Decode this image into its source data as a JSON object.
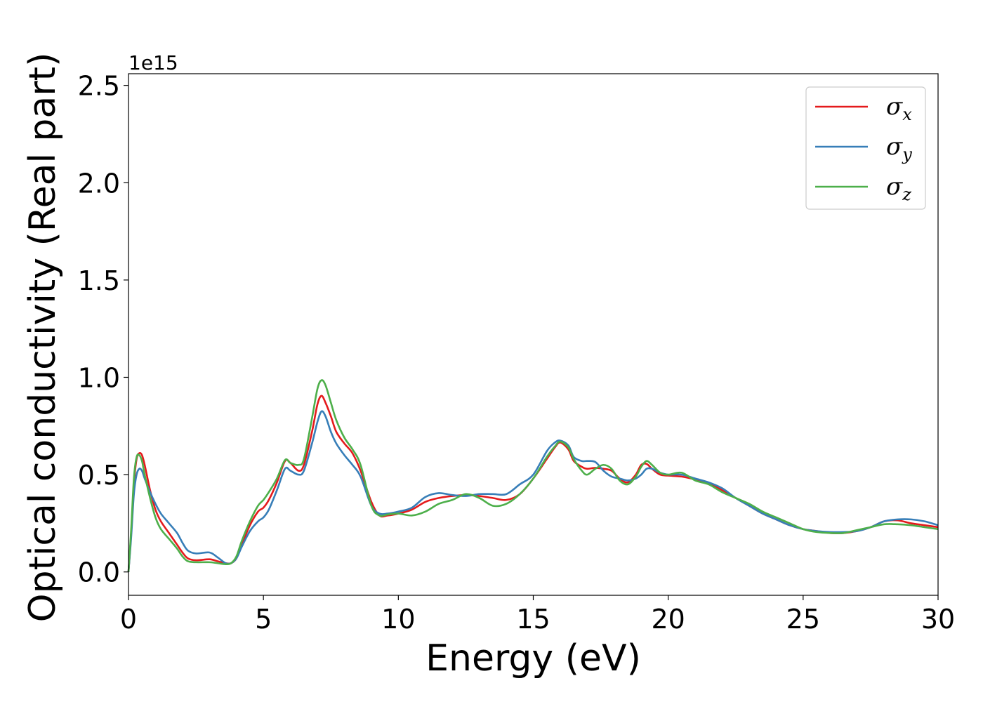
{
  "chart_data": {
    "type": "line",
    "xlabel": "Energy (eV)",
    "ylabel": "Optical conductivity (Real part)",
    "y_offset_label": "1e15",
    "xlim": [
      0,
      30
    ],
    "ylim": [
      -0.12,
      2.56
    ],
    "y_scale_factor": 1000000000000000.0,
    "xticks": [
      0,
      5,
      10,
      15,
      20,
      25,
      30
    ],
    "xtick_labels": [
      "0",
      "5",
      "10",
      "15",
      "20",
      "25",
      "30"
    ],
    "yticks": [
      0.0,
      0.5,
      1.0,
      1.5,
      2.0,
      2.5
    ],
    "ytick_labels": [
      "0.0",
      "0.5",
      "1.0",
      "1.5",
      "2.0",
      "2.5"
    ],
    "grid": false,
    "legend_position": "top-right",
    "series": [
      {
        "name": "σx",
        "legend_symbol": "σ",
        "legend_sub": "x",
        "color": "#e41a1c",
        "x": [
          0,
          0.1,
          0.2,
          0.3,
          0.4,
          0.5,
          0.6,
          0.8,
          1.0,
          1.2,
          1.5,
          1.8,
          2.0,
          2.2,
          2.5,
          3.0,
          3.3,
          3.6,
          3.8,
          4.0,
          4.2,
          4.5,
          4.8,
          5.0,
          5.2,
          5.5,
          5.8,
          6.0,
          6.3,
          6.5,
          6.8,
          7.0,
          7.15,
          7.3,
          7.5,
          7.7,
          8.0,
          8.3,
          8.6,
          9.0,
          9.3,
          9.6,
          10.0,
          10.5,
          11.0,
          11.5,
          12.0,
          12.5,
          13.0,
          13.5,
          14.0,
          14.5,
          15.0,
          15.5,
          15.8,
          16.0,
          16.3,
          16.5,
          16.8,
          17.0,
          17.3,
          17.6,
          17.9,
          18.2,
          18.5,
          18.8,
          19.0,
          19.2,
          19.4,
          19.7,
          20.0,
          20.5,
          21.0,
          21.5,
          22.0,
          22.5,
          23.0,
          23.5,
          24.0,
          24.5,
          25.0,
          25.5,
          26.0,
          26.5,
          27.0,
          27.5,
          28.0,
          28.5,
          29.0,
          29.5,
          30.0
        ],
        "y": [
          0.0,
          0.2,
          0.45,
          0.58,
          0.61,
          0.6,
          0.55,
          0.42,
          0.32,
          0.26,
          0.2,
          0.14,
          0.1,
          0.07,
          0.06,
          0.065,
          0.055,
          0.045,
          0.045,
          0.07,
          0.14,
          0.24,
          0.31,
          0.33,
          0.37,
          0.46,
          0.57,
          0.56,
          0.52,
          0.55,
          0.72,
          0.86,
          0.905,
          0.87,
          0.8,
          0.72,
          0.66,
          0.61,
          0.52,
          0.36,
          0.29,
          0.29,
          0.3,
          0.32,
          0.36,
          0.38,
          0.39,
          0.395,
          0.39,
          0.38,
          0.37,
          0.4,
          0.48,
          0.58,
          0.64,
          0.665,
          0.63,
          0.57,
          0.54,
          0.53,
          0.535,
          0.53,
          0.52,
          0.48,
          0.46,
          0.5,
          0.55,
          0.555,
          0.53,
          0.5,
          0.495,
          0.49,
          0.475,
          0.455,
          0.42,
          0.38,
          0.34,
          0.3,
          0.27,
          0.24,
          0.22,
          0.21,
          0.2,
          0.2,
          0.21,
          0.23,
          0.26,
          0.265,
          0.25,
          0.24,
          0.23
        ]
      },
      {
        "name": "σy",
        "legend_symbol": "σ",
        "legend_sub": "y",
        "color": "#377eb8",
        "x": [
          0,
          0.1,
          0.2,
          0.3,
          0.4,
          0.5,
          0.6,
          0.8,
          1.0,
          1.2,
          1.5,
          1.8,
          2.0,
          2.2,
          2.5,
          3.0,
          3.3,
          3.6,
          3.8,
          4.0,
          4.2,
          4.5,
          4.8,
          5.0,
          5.2,
          5.5,
          5.8,
          6.0,
          6.3,
          6.5,
          6.8,
          7.0,
          7.15,
          7.3,
          7.5,
          7.7,
          8.0,
          8.3,
          8.6,
          9.0,
          9.3,
          9.6,
          10.0,
          10.5,
          11.0,
          11.5,
          12.0,
          12.5,
          13.0,
          13.5,
          14.0,
          14.5,
          15.0,
          15.5,
          15.8,
          16.0,
          16.3,
          16.5,
          16.8,
          17.0,
          17.3,
          17.6,
          17.9,
          18.2,
          18.5,
          18.8,
          19.0,
          19.2,
          19.4,
          19.7,
          20.0,
          20.5,
          21.0,
          21.5,
          22.0,
          22.5,
          23.0,
          23.5,
          24.0,
          24.5,
          25.0,
          25.5,
          26.0,
          26.5,
          27.0,
          27.5,
          28.0,
          28.5,
          29.0,
          29.5,
          30.0
        ],
        "y": [
          0.0,
          0.18,
          0.4,
          0.5,
          0.53,
          0.52,
          0.48,
          0.41,
          0.35,
          0.3,
          0.25,
          0.2,
          0.15,
          0.11,
          0.095,
          0.1,
          0.075,
          0.045,
          0.045,
          0.07,
          0.13,
          0.21,
          0.26,
          0.28,
          0.32,
          0.42,
          0.53,
          0.52,
          0.5,
          0.52,
          0.66,
          0.77,
          0.825,
          0.8,
          0.72,
          0.66,
          0.6,
          0.55,
          0.49,
          0.34,
          0.3,
          0.3,
          0.31,
          0.33,
          0.385,
          0.405,
          0.395,
          0.39,
          0.4,
          0.4,
          0.4,
          0.45,
          0.5,
          0.62,
          0.665,
          0.675,
          0.65,
          0.59,
          0.57,
          0.57,
          0.565,
          0.52,
          0.49,
          0.48,
          0.47,
          0.48,
          0.5,
          0.53,
          0.53,
          0.51,
          0.5,
          0.5,
          0.48,
          0.46,
          0.43,
          0.38,
          0.34,
          0.3,
          0.27,
          0.24,
          0.22,
          0.21,
          0.205,
          0.205,
          0.21,
          0.23,
          0.26,
          0.27,
          0.27,
          0.26,
          0.24
        ]
      },
      {
        "name": "σz",
        "legend_symbol": "σ",
        "legend_sub": "z",
        "color": "#4daf4a",
        "x": [
          0,
          0.1,
          0.2,
          0.3,
          0.4,
          0.5,
          0.6,
          0.8,
          1.0,
          1.2,
          1.5,
          1.8,
          2.0,
          2.2,
          2.5,
          3.0,
          3.3,
          3.6,
          3.8,
          4.0,
          4.2,
          4.5,
          4.8,
          5.0,
          5.2,
          5.5,
          5.8,
          6.0,
          6.3,
          6.5,
          6.8,
          7.0,
          7.15,
          7.3,
          7.5,
          7.7,
          8.0,
          8.3,
          8.6,
          9.0,
          9.3,
          9.6,
          10.0,
          10.5,
          11.0,
          11.5,
          12.0,
          12.5,
          13.0,
          13.5,
          14.0,
          14.5,
          15.0,
          15.5,
          15.8,
          16.0,
          16.3,
          16.5,
          16.8,
          17.0,
          17.3,
          17.6,
          17.9,
          18.2,
          18.5,
          18.8,
          19.0,
          19.2,
          19.4,
          19.7,
          20.0,
          20.5,
          21.0,
          21.5,
          22.0,
          22.5,
          23.0,
          23.5,
          24.0,
          24.5,
          25.0,
          25.5,
          26.0,
          26.5,
          27.0,
          27.5,
          28.0,
          28.5,
          29.0,
          29.5,
          30.0
        ],
        "y": [
          0.0,
          0.22,
          0.48,
          0.59,
          0.6,
          0.57,
          0.5,
          0.38,
          0.28,
          0.22,
          0.17,
          0.12,
          0.08,
          0.055,
          0.05,
          0.05,
          0.045,
          0.04,
          0.045,
          0.08,
          0.16,
          0.26,
          0.34,
          0.37,
          0.41,
          0.48,
          0.575,
          0.56,
          0.55,
          0.58,
          0.79,
          0.94,
          0.985,
          0.96,
          0.87,
          0.78,
          0.69,
          0.63,
          0.55,
          0.34,
          0.29,
          0.295,
          0.3,
          0.29,
          0.31,
          0.35,
          0.37,
          0.4,
          0.38,
          0.34,
          0.35,
          0.4,
          0.48,
          0.59,
          0.645,
          0.67,
          0.64,
          0.58,
          0.52,
          0.5,
          0.53,
          0.55,
          0.53,
          0.47,
          0.45,
          0.49,
          0.54,
          0.57,
          0.55,
          0.51,
          0.5,
          0.51,
          0.47,
          0.45,
          0.41,
          0.38,
          0.35,
          0.31,
          0.28,
          0.25,
          0.22,
          0.205,
          0.2,
          0.2,
          0.215,
          0.23,
          0.245,
          0.245,
          0.24,
          0.23,
          0.22
        ]
      }
    ]
  }
}
